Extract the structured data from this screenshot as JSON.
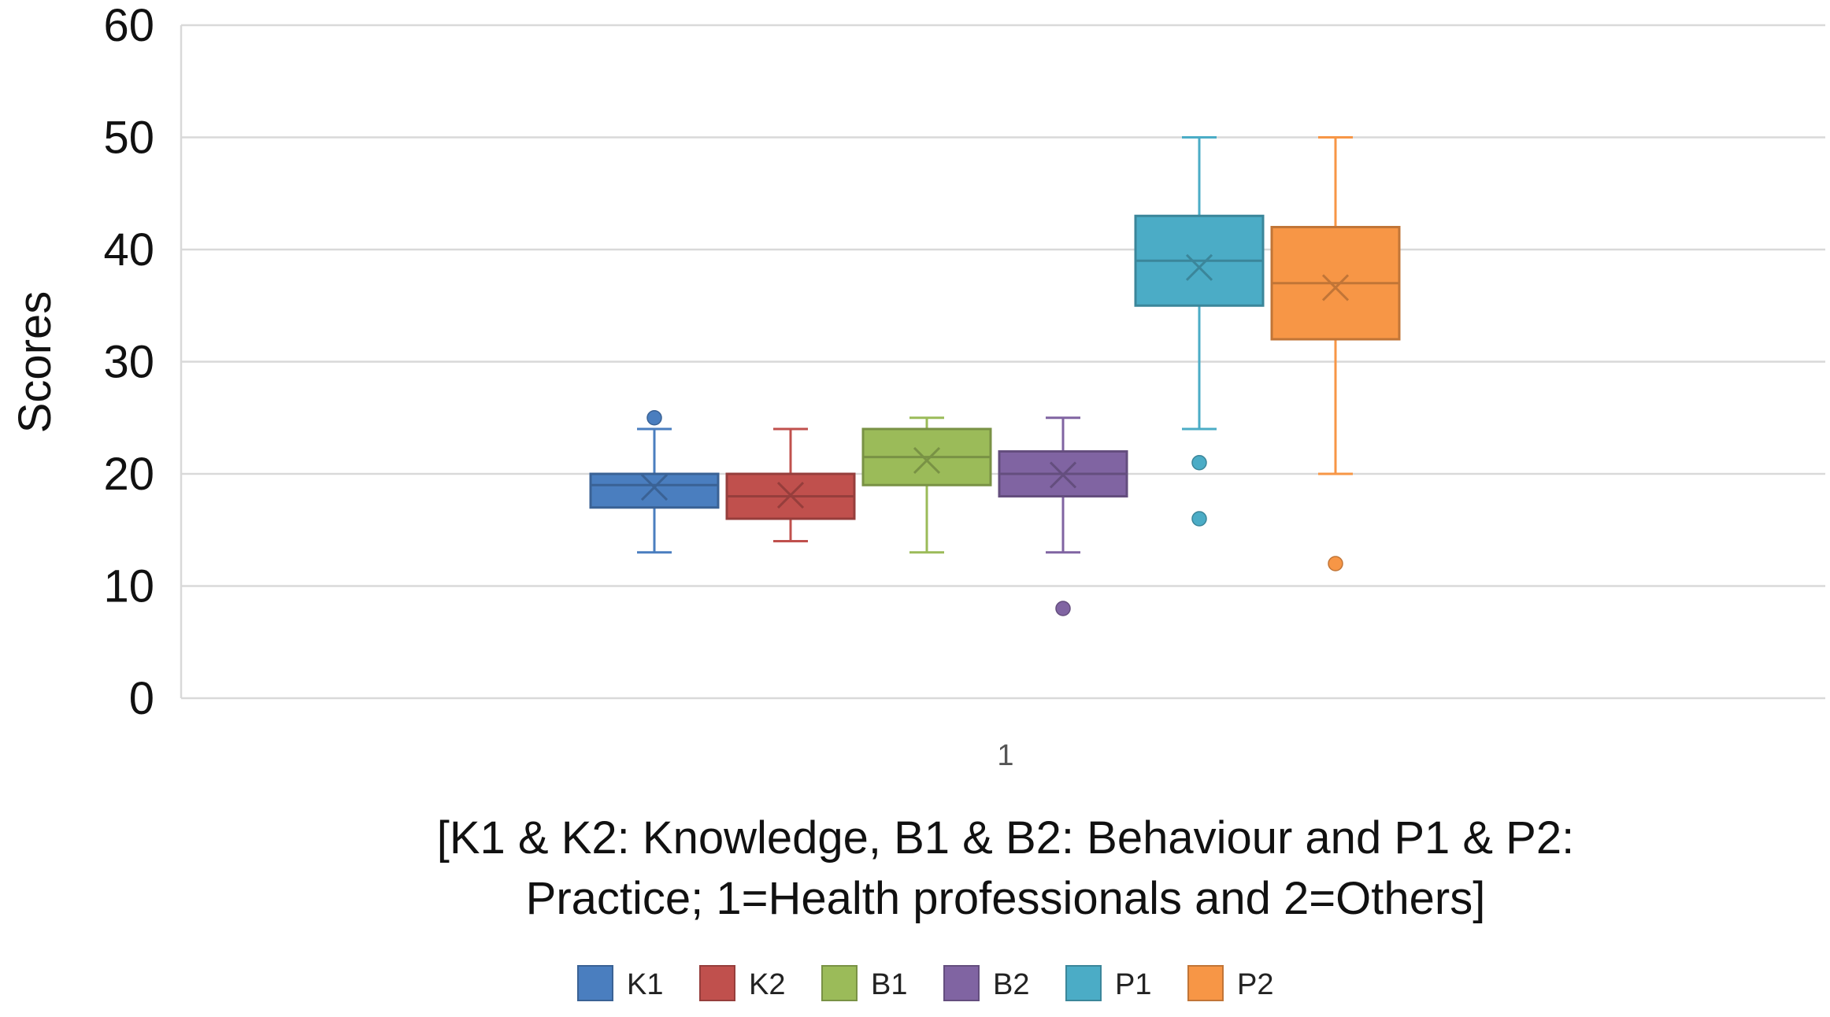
{
  "chart_data": {
    "type": "box",
    "ylabel": "Scores",
    "xlabel_lines": [
      "[K1 & K2: Knowledge, B1 & B2: Behaviour and P1 & P2:",
      "Practice; 1=Health professionals and 2=Others]"
    ],
    "categories": [
      "1"
    ],
    "ylim": [
      0,
      60
    ],
    "yticks": [
      0,
      10,
      20,
      30,
      40,
      50,
      60
    ],
    "grid": true,
    "legend_position": "bottom",
    "series": [
      {
        "name": "K1",
        "color": "#4a7ebf",
        "min": 13,
        "q1": 17,
        "median": 19,
        "q3": 20,
        "max": 24,
        "mean": 18.8,
        "outliers": [
          25
        ]
      },
      {
        "name": "K2",
        "color": "#c0504d",
        "min": 14,
        "q1": 16,
        "median": 18,
        "q3": 20,
        "max": 24,
        "mean": 18.1,
        "outliers": []
      },
      {
        "name": "B1",
        "color": "#9bbb59",
        "min": 13,
        "q1": 19,
        "median": 21.5,
        "q3": 24,
        "max": 25,
        "mean": 21.2,
        "outliers": []
      },
      {
        "name": "B2",
        "color": "#8064a2",
        "min": 13,
        "q1": 18,
        "median": 20,
        "q3": 22,
        "max": 25,
        "mean": 19.9,
        "outliers": [
          8
        ]
      },
      {
        "name": "P1",
        "color": "#4bacc6",
        "min": 24,
        "q1": 35,
        "median": 39,
        "q3": 43,
        "max": 50,
        "mean": 38.4,
        "outliers": [
          21,
          16
        ]
      },
      {
        "name": "P2",
        "color": "#f79646",
        "min": 20,
        "q1": 32,
        "median": 37,
        "q3": 42,
        "max": 50,
        "mean": 36.6,
        "outliers": [
          12
        ]
      }
    ]
  }
}
